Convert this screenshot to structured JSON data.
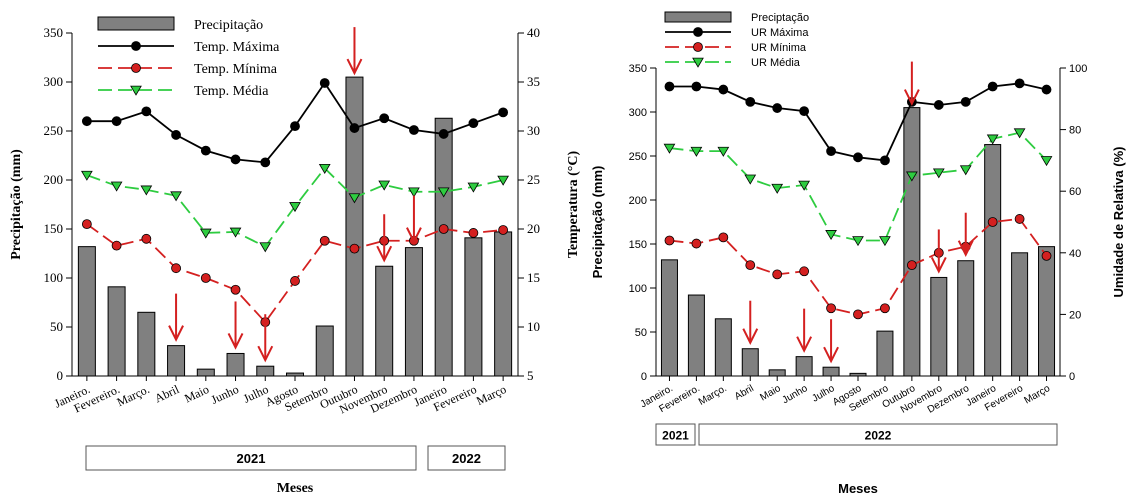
{
  "chart_data": [
    {
      "type": "bar",
      "categories": [
        "Janeiro",
        "Fevereiro",
        "Março",
        "Abril",
        "Maio",
        "Junho",
        "Julho",
        "Agosto",
        "Setembro",
        "Outubro",
        "Novembro",
        "Dezembro",
        "Janeiro",
        "Fevereiro",
        "Março"
      ],
      "category_labels": [
        "Janeiro.",
        "Fevereiro.",
        "Março.",
        "Abril",
        "Maio",
        "Junho",
        "Julho",
        "Agosto",
        "Setembro",
        "Outubro",
        "Novembro",
        "Dezembro",
        "Janeiro",
        "Fevereiro",
        "Março"
      ],
      "xlabel": "Meses",
      "ylabel": "Precipitação (mm)",
      "y2label": "Temperatura (°C)",
      "ylim": [
        0,
        350
      ],
      "y2lim": [
        5,
        40
      ],
      "yticks": [
        0,
        50,
        100,
        150,
        200,
        250,
        300,
        350
      ],
      "y2ticks": [
        5,
        10,
        15,
        20,
        25,
        30,
        35,
        40
      ],
      "legend_position": "top-left",
      "year_groups": [
        {
          "label": "2021",
          "start": 0,
          "end": 11
        },
        {
          "label": "2022",
          "start": 12,
          "end": 14
        }
      ],
      "arrows_at": [
        3,
        5,
        6,
        9,
        10,
        11
      ],
      "series": [
        {
          "name": "Precipitação",
          "kind": "bar",
          "axis": "left",
          "color": "#808080",
          "values": [
            132,
            91,
            65,
            31,
            7,
            23,
            10,
            3,
            51,
            305,
            112,
            131,
            263,
            141,
            147
          ]
        },
        {
          "name": "Temp. Máxima",
          "kind": "line",
          "axis": "right",
          "color": "#000000",
          "marker": "circle",
          "marker_fill": "#000000",
          "dash": "solid",
          "values": [
            31.0,
            31.0,
            32.0,
            29.6,
            28.0,
            27.1,
            26.8,
            30.5,
            34.9,
            30.3,
            31.3,
            30.1,
            29.7,
            30.8,
            31.9
          ]
        },
        {
          "name": "Temp. Mínima",
          "kind": "line",
          "axis": "right",
          "color": "#d42020",
          "marker": "circle",
          "marker_fill": "#d42020",
          "dash": "long",
          "values": [
            20.5,
            18.3,
            19.0,
            16.0,
            15.0,
            13.8,
            10.5,
            14.7,
            18.8,
            18.0,
            18.8,
            18.8,
            20.0,
            19.6,
            19.9
          ]
        },
        {
          "name": "Temp. Média",
          "kind": "line",
          "axis": "right",
          "color": "#2ecc40",
          "marker": "triangle-down",
          "marker_fill": "#2ecc40",
          "dash": "long",
          "values": [
            25.5,
            24.4,
            24.0,
            23.4,
            19.6,
            19.7,
            18.2,
            22.3,
            26.2,
            23.2,
            24.5,
            23.8,
            23.8,
            24.3,
            25.0
          ]
        }
      ]
    },
    {
      "type": "bar",
      "categories": [
        "Janeiro",
        "Fevereiro",
        "Março",
        "Abril",
        "Maio",
        "Junho",
        "Julho",
        "Agosto",
        "Setembro",
        "Outubro",
        "Novembro",
        "Dezembro",
        "Janeiro",
        "Fevereiro",
        "Março"
      ],
      "category_labels": [
        "Janeiro.",
        "Fevereiro.",
        "Março.",
        "Abril",
        "Maio",
        "Junho",
        "Julho",
        "Agosto",
        "Setembro",
        "Outubro",
        "Novembro",
        "Dezembro",
        "Janeiro",
        "Fevereiro",
        "Março"
      ],
      "xlabel": "Meses",
      "ylabel": "Precipitação (mm)",
      "y2label": "Umidade de Relativa (%)",
      "ylim": [
        0,
        350
      ],
      "y2lim": [
        0,
        100
      ],
      "yticks": [
        0,
        50,
        100,
        150,
        200,
        250,
        300,
        350
      ],
      "y2ticks": [
        0,
        20,
        40,
        60,
        80,
        100
      ],
      "legend_position": "top-left",
      "year_groups": [
        {
          "label": "2021",
          "start": 0,
          "end": 0
        },
        {
          "label": "2022",
          "start": 1,
          "end": 14
        }
      ],
      "arrows_at": [
        3,
        5,
        6,
        9,
        10,
        11
      ],
      "series": [
        {
          "name": "Preciptação",
          "kind": "bar",
          "axis": "left",
          "color": "#808080",
          "values": [
            132,
            92,
            65,
            31,
            7,
            22,
            10,
            3,
            51,
            305,
            112,
            131,
            263,
            140,
            147
          ]
        },
        {
          "name": "UR Máxima",
          "kind": "line",
          "axis": "right",
          "color": "#000000",
          "marker": "circle",
          "marker_fill": "#000000",
          "dash": "solid",
          "values": [
            94,
            94,
            93,
            89,
            87,
            86,
            73,
            71,
            70,
            89,
            88,
            89,
            94,
            95,
            93
          ]
        },
        {
          "name": "UR Mínima",
          "kind": "line",
          "axis": "right",
          "color": "#d42020",
          "marker": "circle",
          "marker_fill": "#d42020",
          "dash": "long",
          "values": [
            44,
            43,
            45,
            36,
            33,
            34,
            22,
            20,
            22,
            36,
            40,
            42,
            50,
            51,
            39
          ]
        },
        {
          "name": "UR Média",
          "kind": "line",
          "axis": "right",
          "color": "#2ecc40",
          "marker": "triangle-down",
          "marker_fill": "#2ecc40",
          "dash": "long",
          "values": [
            74,
            73,
            73,
            64,
            61,
            62,
            46,
            44,
            44,
            65,
            66,
            67,
            77,
            79,
            70
          ]
        }
      ]
    }
  ]
}
